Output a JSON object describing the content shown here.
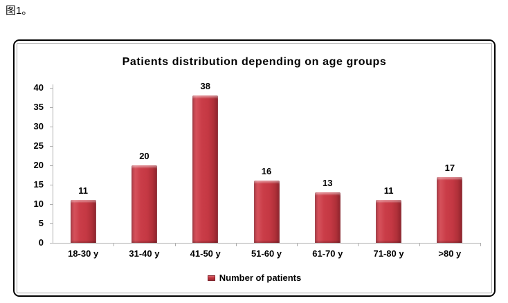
{
  "caption": "图1。",
  "chart_data": {
    "type": "bar",
    "title": "Patients distribution depending on age groups",
    "categories": [
      "18-30 y",
      "31-40 y",
      "41-50 y",
      "51-60 y",
      "61-70 y",
      "71-80 y",
      ">80 y"
    ],
    "values": [
      11,
      20,
      38,
      16,
      13,
      11,
      17
    ],
    "series_name": "Number of patients",
    "legend": "Number of patients",
    "legend_position": "bottom",
    "xlabel": "",
    "ylabel": "",
    "ylim": [
      0,
      40
    ],
    "yticks": [
      0,
      5,
      10,
      15,
      20,
      25,
      30,
      35,
      40
    ],
    "grid": false,
    "data_labels": true,
    "colors": {
      "bar_main": "#C43843",
      "bar_highlight": "#D5515B",
      "bar_shadow": "#8C222C",
      "axis": "#ADADAD",
      "text": "#000000",
      "frame_border": "#000000",
      "inner_border": "#A8A8A8",
      "background": "#FFFFFF"
    }
  }
}
